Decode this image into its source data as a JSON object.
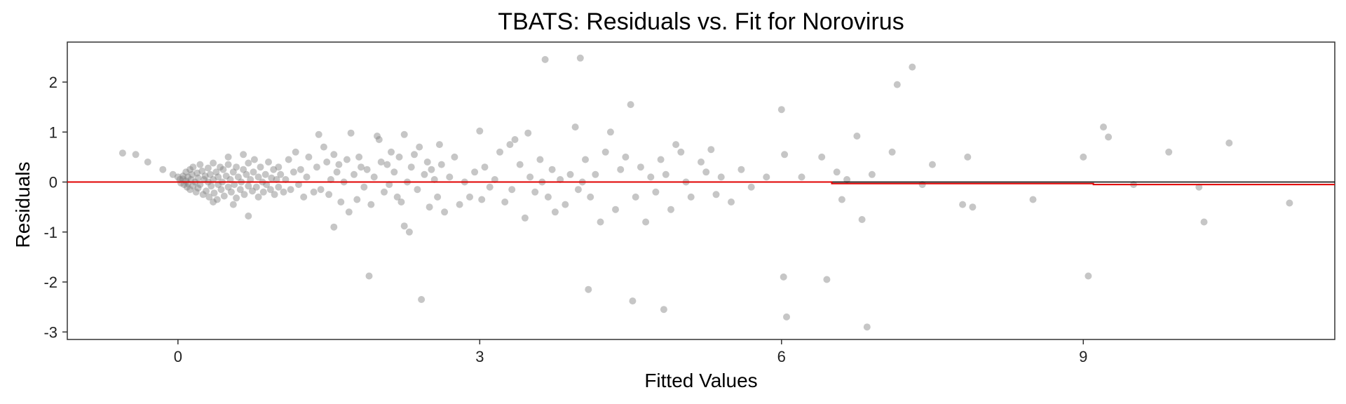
{
  "chart_data": {
    "type": "scatter",
    "title": "TBATS: Residuals vs. Fit for Norovirus",
    "xlabel": "Fitted Values",
    "ylabel": "Residuals",
    "xlim": [
      -1.1,
      11.5
    ],
    "ylim": [
      -3.15,
      2.8
    ],
    "xticks": [
      "0",
      "3",
      "6",
      "9"
    ],
    "yticks": [
      "2",
      "1",
      "0",
      "-1",
      "-2",
      "-3"
    ],
    "grid": false,
    "legend": "none",
    "colors": {
      "points": "#808080",
      "zero_line": "#000000",
      "trend_line": "#e00000"
    },
    "series": [
      {
        "points": [
          [
            -0.55,
            0.58
          ],
          [
            -0.42,
            0.55
          ],
          [
            -0.3,
            0.4
          ],
          [
            -0.15,
            0.25
          ],
          [
            -0.05,
            0.15
          ],
          [
            0.0,
            0.1
          ],
          [
            0.02,
            0.05
          ],
          [
            0.03,
            -0.02
          ],
          [
            0.05,
            0.12
          ],
          [
            0.05,
            0.06
          ],
          [
            0.06,
            -0.05
          ],
          [
            0.08,
            0.2
          ],
          [
            0.08,
            0.02
          ],
          [
            0.09,
            -0.1
          ],
          [
            0.1,
            0.1
          ],
          [
            0.1,
            -0.03
          ],
          [
            0.12,
            0.25
          ],
          [
            0.12,
            -0.15
          ],
          [
            0.13,
            0.05
          ],
          [
            0.14,
            0.15
          ],
          [
            0.15,
            -0.08
          ],
          [
            0.15,
            0.3
          ],
          [
            0.17,
            0.0
          ],
          [
            0.18,
            -0.2
          ],
          [
            0.19,
            0.18
          ],
          [
            0.2,
            0.08
          ],
          [
            0.2,
            -0.12
          ],
          [
            0.22,
            0.35
          ],
          [
            0.22,
            -0.05
          ],
          [
            0.24,
            0.22
          ],
          [
            0.25,
            -0.25
          ],
          [
            0.26,
            0.05
          ],
          [
            0.27,
            0.12
          ],
          [
            0.28,
            -0.18
          ],
          [
            0.3,
            0.28
          ],
          [
            0.3,
            0.0
          ],
          [
            0.31,
            -0.3
          ],
          [
            0.32,
            0.15
          ],
          [
            0.33,
            -0.08
          ],
          [
            0.35,
            0.38
          ],
          [
            0.35,
            0.05
          ],
          [
            0.36,
            -0.22
          ],
          [
            0.38,
            0.2
          ],
          [
            0.39,
            -0.35
          ],
          [
            0.4,
            0.1
          ],
          [
            0.4,
            -0.05
          ],
          [
            0.42,
            0.3
          ],
          [
            0.43,
            -0.15
          ],
          [
            0.44,
            0.0
          ],
          [
            0.45,
            0.25
          ],
          [
            0.46,
            -0.28
          ],
          [
            0.48,
            0.12
          ],
          [
            0.5,
            -0.1
          ],
          [
            0.5,
            0.35
          ],
          [
            0.52,
            0.05
          ],
          [
            0.53,
            -0.2
          ],
          [
            0.55,
            0.2
          ],
          [
            0.56,
            -0.05
          ],
          [
            0.58,
            0.3
          ],
          [
            0.58,
            -0.32
          ],
          [
            0.6,
            0.1
          ],
          [
            0.62,
            -0.15
          ],
          [
            0.63,
            0.0
          ],
          [
            0.65,
            0.25
          ],
          [
            0.66,
            -0.25
          ],
          [
            0.68,
            0.15
          ],
          [
            0.7,
            -0.08
          ],
          [
            0.7,
            0.38
          ],
          [
            0.72,
            0.05
          ],
          [
            0.74,
            -0.18
          ],
          [
            0.75,
            0.2
          ],
          [
            0.76,
            0.45
          ],
          [
            0.78,
            -0.1
          ],
          [
            0.8,
            0.1
          ],
          [
            0.8,
            -0.3
          ],
          [
            0.82,
            0.3
          ],
          [
            0.84,
            0.0
          ],
          [
            0.85,
            -0.2
          ],
          [
            0.87,
            0.15
          ],
          [
            0.88,
            -0.05
          ],
          [
            0.9,
            0.4
          ],
          [
            0.92,
            -0.15
          ],
          [
            0.93,
            0.08
          ],
          [
            0.95,
            0.25
          ],
          [
            0.96,
            -0.25
          ],
          [
            0.98,
            0.05
          ],
          [
            1.0,
            -0.1
          ],
          [
            1.0,
            0.3
          ],
          [
            1.02,
            0.15
          ],
          [
            1.05,
            -0.2
          ],
          [
            1.07,
            0.05
          ],
          [
            1.1,
            0.45
          ],
          [
            1.12,
            -0.15
          ],
          [
            1.15,
            0.2
          ],
          [
            1.17,
            0.6
          ],
          [
            1.2,
            -0.05
          ],
          [
            1.22,
            0.25
          ],
          [
            1.25,
            -0.3
          ],
          [
            1.28,
            0.1
          ],
          [
            1.3,
            0.5
          ],
          [
            0.7,
            -0.68
          ],
          [
            0.55,
            -0.45
          ],
          [
            0.35,
            -0.4
          ],
          [
            0.5,
            0.5
          ],
          [
            0.65,
            0.55
          ],
          [
            1.35,
            -0.2
          ],
          [
            1.38,
            0.3
          ],
          [
            1.4,
            0.95
          ],
          [
            1.42,
            -0.15
          ],
          [
            1.45,
            0.7
          ],
          [
            1.48,
            0.4
          ],
          [
            1.5,
            -0.25
          ],
          [
            1.52,
            0.05
          ],
          [
            1.55,
            -0.9
          ],
          [
            1.55,
            0.55
          ],
          [
            1.58,
            0.2
          ],
          [
            1.6,
            0.35
          ],
          [
            1.62,
            -0.4
          ],
          [
            1.65,
            0.0
          ],
          [
            1.68,
            0.45
          ],
          [
            1.7,
            -0.6
          ],
          [
            1.72,
            0.98
          ],
          [
            1.75,
            0.15
          ],
          [
            1.78,
            -0.35
          ],
          [
            1.8,
            0.5
          ],
          [
            1.82,
            0.3
          ],
          [
            1.85,
            -0.1
          ],
          [
            1.88,
            0.25
          ],
          [
            1.9,
            -1.88
          ],
          [
            1.92,
            -0.45
          ],
          [
            1.95,
            0.1
          ],
          [
            1.98,
            0.92
          ],
          [
            2.0,
            0.85
          ],
          [
            2.02,
            0.4
          ],
          [
            2.05,
            -0.2
          ],
          [
            2.08,
            0.35
          ],
          [
            2.1,
            -0.05
          ],
          [
            2.12,
            0.6
          ],
          [
            2.15,
            0.2
          ],
          [
            2.18,
            -0.3
          ],
          [
            2.2,
            0.5
          ],
          [
            2.22,
            -0.4
          ],
          [
            2.25,
            0.95
          ],
          [
            2.25,
            -0.88
          ],
          [
            2.28,
            0.0
          ],
          [
            2.3,
            -1.0
          ],
          [
            2.32,
            0.3
          ],
          [
            2.35,
            0.55
          ],
          [
            2.38,
            -0.15
          ],
          [
            2.4,
            0.7
          ],
          [
            2.42,
            -2.35
          ],
          [
            2.45,
            0.15
          ],
          [
            2.48,
            0.4
          ],
          [
            2.5,
            -0.5
          ],
          [
            2.52,
            0.25
          ],
          [
            2.55,
            0.05
          ],
          [
            2.58,
            -0.3
          ],
          [
            2.6,
            0.75
          ],
          [
            2.62,
            0.35
          ],
          [
            2.65,
            -0.6
          ],
          [
            2.7,
            0.1
          ],
          [
            2.75,
            0.5
          ],
          [
            2.8,
            -0.45
          ],
          [
            2.85,
            0.0
          ],
          [
            2.9,
            -0.3
          ],
          [
            2.95,
            0.2
          ],
          [
            3.0,
            1.02
          ],
          [
            3.02,
            -0.35
          ],
          [
            3.05,
            0.3
          ],
          [
            3.1,
            -0.1
          ],
          [
            3.15,
            0.05
          ],
          [
            3.2,
            0.6
          ],
          [
            3.25,
            -0.4
          ],
          [
            3.3,
            0.75
          ],
          [
            3.32,
            -0.15
          ],
          [
            3.35,
            0.85
          ],
          [
            3.4,
            0.35
          ],
          [
            3.45,
            -0.72
          ],
          [
            3.48,
            0.98
          ],
          [
            3.5,
            0.1
          ],
          [
            3.55,
            -0.2
          ],
          [
            3.6,
            0.45
          ],
          [
            3.62,
            0.0
          ],
          [
            3.65,
            2.45
          ],
          [
            3.68,
            -0.3
          ],
          [
            3.72,
            0.25
          ],
          [
            3.75,
            -0.6
          ],
          [
            3.8,
            0.05
          ],
          [
            3.85,
            -0.45
          ],
          [
            3.9,
            0.15
          ],
          [
            3.95,
            1.1
          ],
          [
            3.98,
            -0.15
          ],
          [
            4.0,
            2.48
          ],
          [
            4.02,
            0.0
          ],
          [
            4.05,
            0.45
          ],
          [
            4.08,
            -2.15
          ],
          [
            4.1,
            -0.3
          ],
          [
            4.15,
            0.15
          ],
          [
            4.2,
            -0.8
          ],
          [
            4.25,
            0.6
          ],
          [
            4.3,
            1.0
          ],
          [
            4.35,
            -0.55
          ],
          [
            4.4,
            0.25
          ],
          [
            4.45,
            0.5
          ],
          [
            4.5,
            1.55
          ],
          [
            4.52,
            -2.38
          ],
          [
            4.55,
            -0.3
          ],
          [
            4.6,
            0.3
          ],
          [
            4.65,
            -0.8
          ],
          [
            4.7,
            0.1
          ],
          [
            4.75,
            -0.2
          ],
          [
            4.8,
            0.45
          ],
          [
            4.83,
            -2.55
          ],
          [
            4.85,
            0.15
          ],
          [
            4.9,
            -0.55
          ],
          [
            4.95,
            0.75
          ],
          [
            5.0,
            0.6
          ],
          [
            5.05,
            0.0
          ],
          [
            5.1,
            -0.3
          ],
          [
            5.2,
            0.4
          ],
          [
            5.25,
            0.2
          ],
          [
            5.3,
            0.65
          ],
          [
            5.35,
            -0.25
          ],
          [
            5.4,
            0.1
          ],
          [
            5.5,
            -0.4
          ],
          [
            5.6,
            0.25
          ],
          [
            5.7,
            -0.1
          ],
          [
            5.85,
            0.1
          ],
          [
            6.0,
            1.45
          ],
          [
            6.02,
            -1.9
          ],
          [
            6.03,
            0.55
          ],
          [
            6.05,
            -2.7
          ],
          [
            6.2,
            0.1
          ],
          [
            6.4,
            0.5
          ],
          [
            6.45,
            -1.95
          ],
          [
            6.55,
            0.2
          ],
          [
            6.6,
            -0.35
          ],
          [
            6.65,
            0.05
          ],
          [
            6.75,
            0.92
          ],
          [
            6.8,
            -0.75
          ],
          [
            6.85,
            -2.9
          ],
          [
            6.9,
            0.15
          ],
          [
            7.1,
            0.6
          ],
          [
            7.15,
            1.95
          ],
          [
            7.3,
            2.3
          ],
          [
            7.4,
            -0.05
          ],
          [
            7.5,
            0.35
          ],
          [
            7.8,
            -0.45
          ],
          [
            7.85,
            0.5
          ],
          [
            7.9,
            -0.5
          ],
          [
            8.5,
            -0.35
          ],
          [
            9.0,
            0.5
          ],
          [
            9.05,
            -1.88
          ],
          [
            9.2,
            1.1
          ],
          [
            9.25,
            0.9
          ],
          [
            9.5,
            -0.05
          ],
          [
            9.85,
            0.6
          ],
          [
            10.15,
            -0.1
          ],
          [
            10.2,
            -0.8
          ],
          [
            10.45,
            0.78
          ],
          [
            11.05,
            -0.42
          ]
        ]
      }
    ],
    "trend_line": [
      [
        -1.1,
        0.0
      ],
      [
        6.5,
        0.0
      ],
      [
        6.5,
        -0.03
      ],
      [
        9.1,
        -0.03
      ],
      [
        9.1,
        -0.05
      ],
      [
        11.5,
        -0.05
      ]
    ]
  }
}
